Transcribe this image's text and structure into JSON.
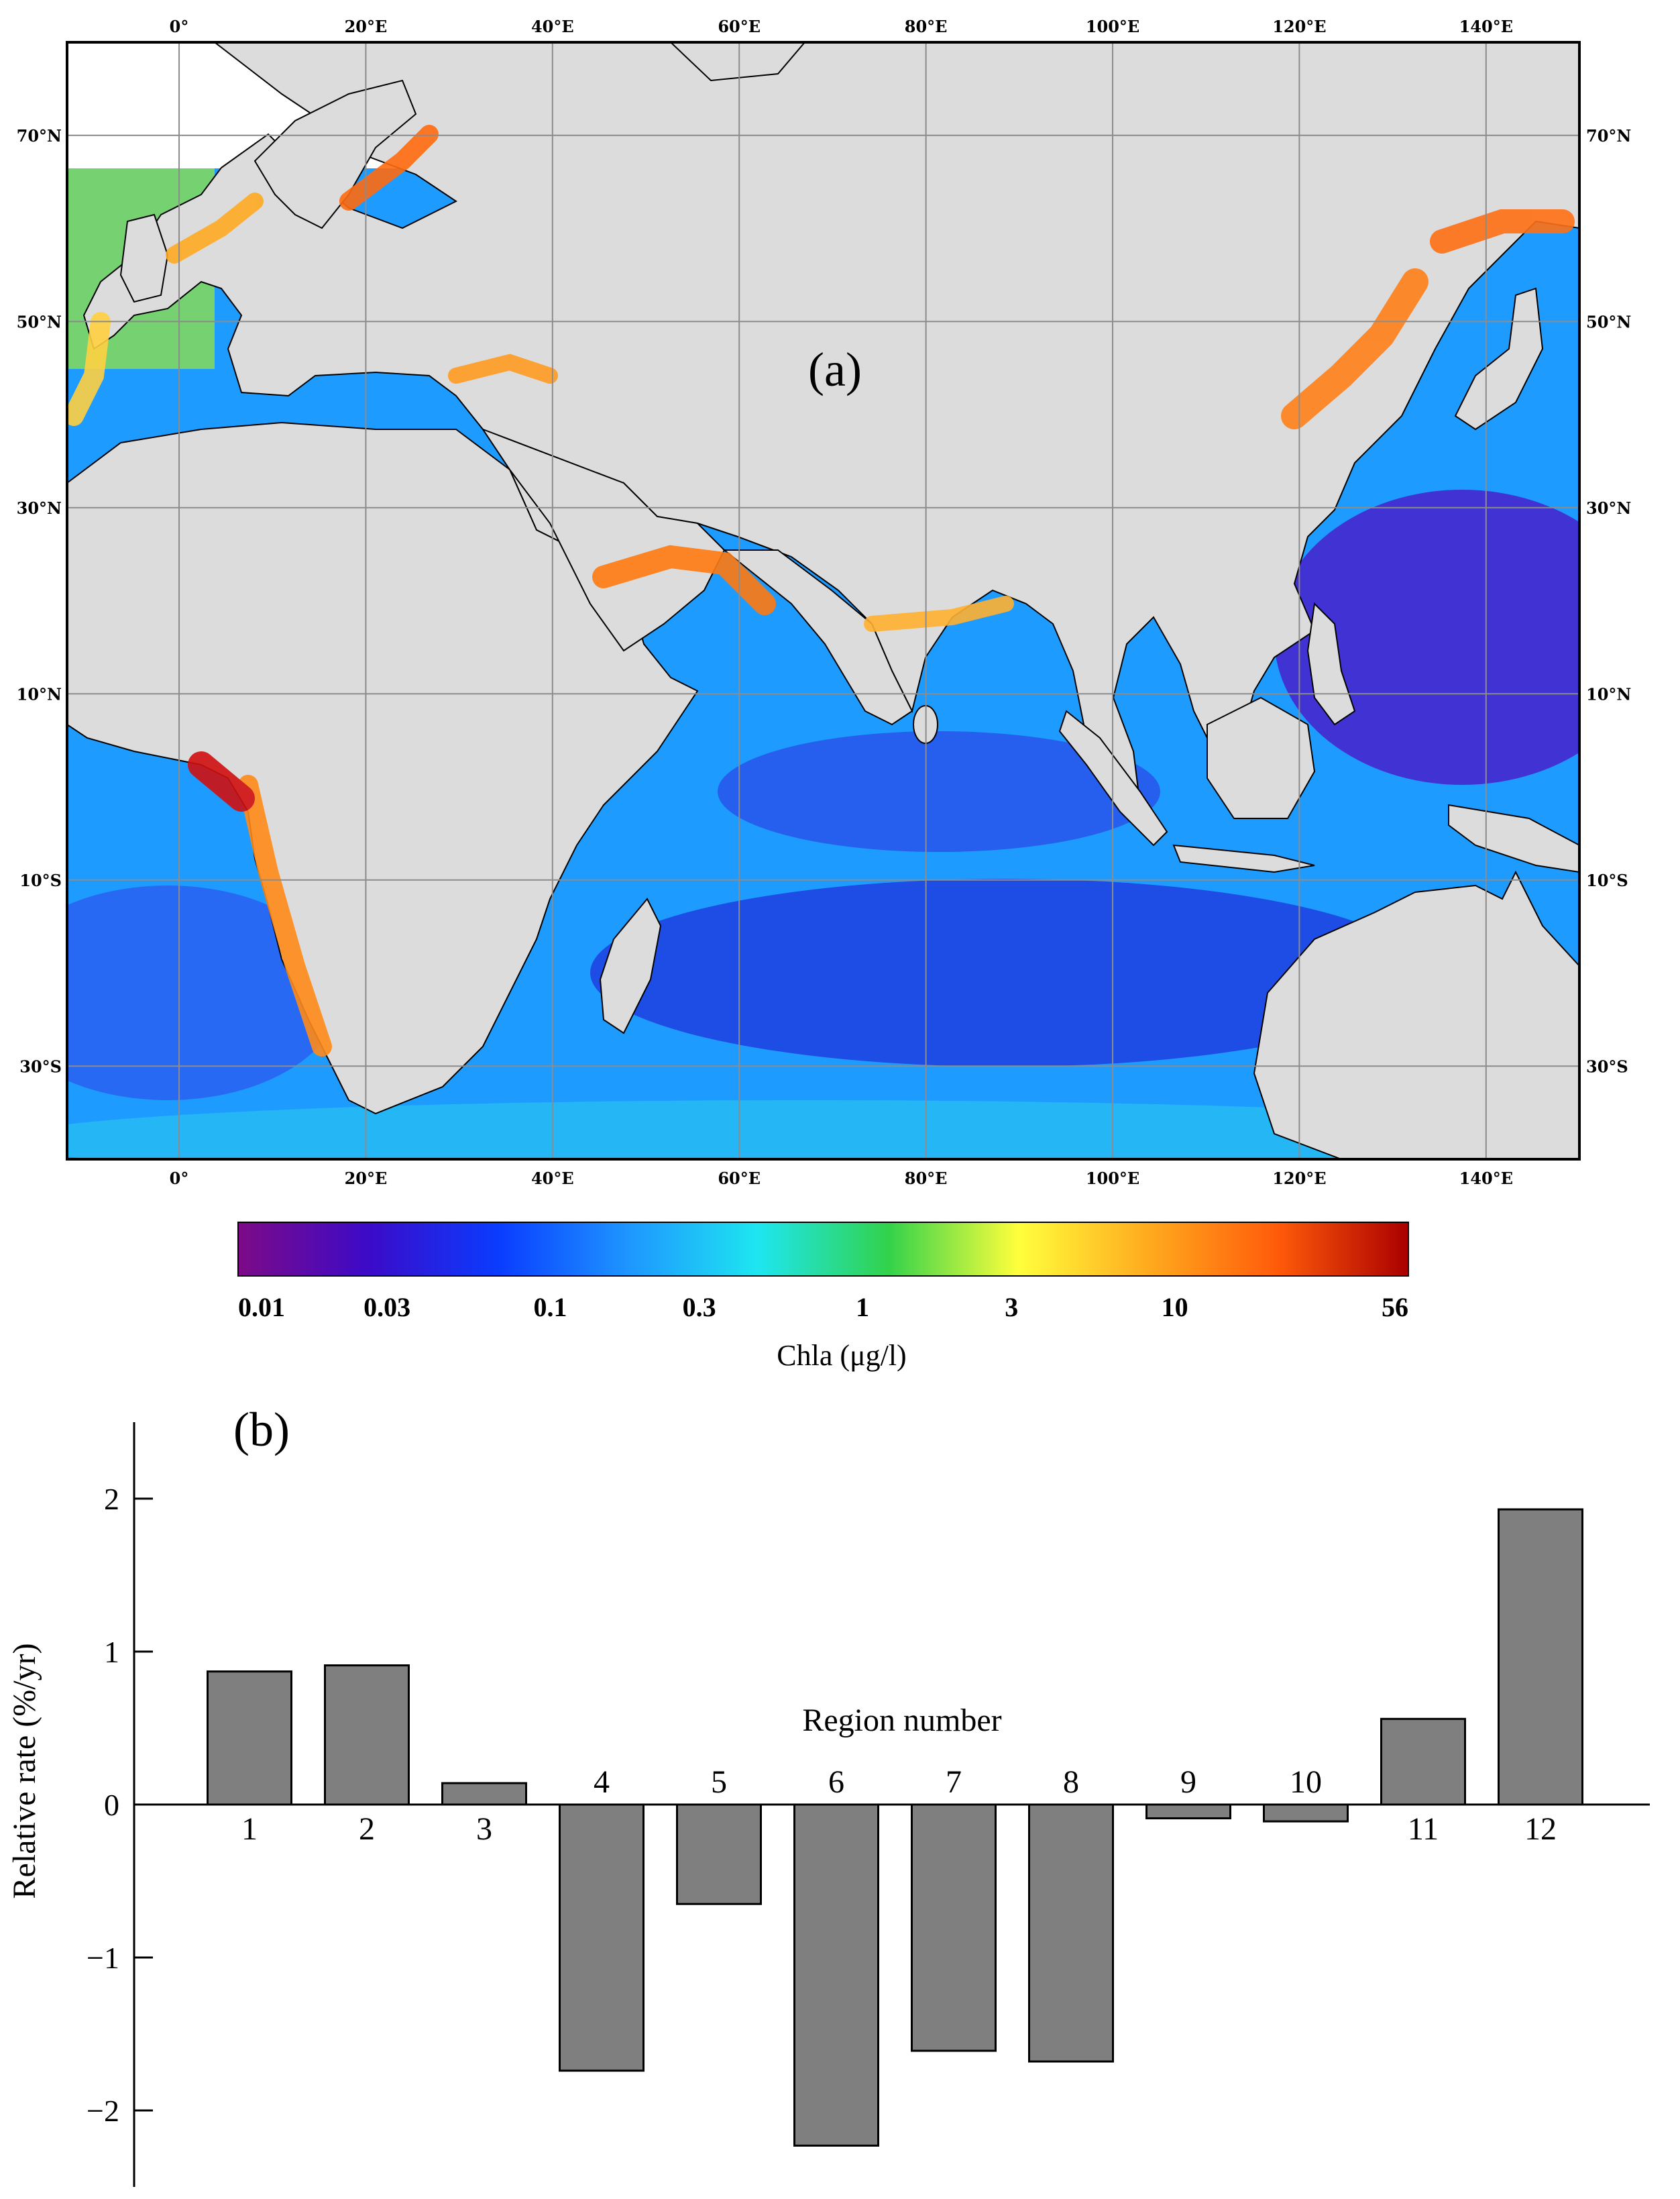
{
  "panel_a": {
    "label": "(a)",
    "map": {
      "lon_range": [
        -12,
        150
      ],
      "lat_range": [
        -40,
        80
      ],
      "lon_ticks": [
        {
          "value": 0,
          "label": "0°"
        },
        {
          "value": 20,
          "label": "20°E"
        },
        {
          "value": 40,
          "label": "40°E"
        },
        {
          "value": 60,
          "label": "60°E"
        },
        {
          "value": 80,
          "label": "80°E"
        },
        {
          "value": 100,
          "label": "100°E"
        },
        {
          "value": 120,
          "label": "120°E"
        },
        {
          "value": 140,
          "label": "140°E"
        }
      ],
      "lat_ticks": [
        {
          "value": 70,
          "label": "70°N"
        },
        {
          "value": 50,
          "label": "50°N"
        },
        {
          "value": 30,
          "label": "30°N"
        },
        {
          "value": 10,
          "label": "10°N"
        },
        {
          "value": -10,
          "label": "10°S"
        },
        {
          "value": -30,
          "label": "30°S"
        }
      ],
      "grid": true,
      "colors": {
        "land": "#dcdcdc",
        "grid": "#8c8c8c",
        "coast": "#000000"
      }
    },
    "colorbar": {
      "title": "Chla (μg/l)",
      "scale": "log",
      "tick_labels": [
        "0.01",
        "0.03",
        "0.1",
        "0.3",
        "1",
        "3",
        "10",
        "56"
      ],
      "tick_values": [
        0.01,
        0.03,
        0.1,
        0.3,
        1,
        3,
        10,
        56
      ],
      "colormap": [
        "#7d0a87",
        "#3c0ac8",
        "#0a3cff",
        "#1e96ff",
        "#1ee6f0",
        "#32d24b",
        "#ffff3c",
        "#ffaa1e",
        "#ff5a0a",
        "#aa0000"
      ]
    }
  },
  "panel_b": {
    "label": "(b)",
    "chart_data": {
      "type": "bar",
      "categories": [
        "1",
        "2",
        "3",
        "4",
        "5",
        "6",
        "7",
        "8",
        "9",
        "10",
        "11",
        "12"
      ],
      "values": [
        0.87,
        0.91,
        0.14,
        -1.74,
        -0.65,
        -2.23,
        -1.61,
        -1.68,
        -0.09,
        -0.11,
        0.56,
        1.93
      ],
      "xlabel": "Region number",
      "ylabel": "Relative rate (%/yr)",
      "ylim": [
        -2.5,
        2.5
      ],
      "yticks": [
        2,
        1,
        0,
        -1,
        -2
      ],
      "ytick_labels": [
        "2",
        "1",
        "0",
        "−1",
        "−2"
      ],
      "bar_color": "#7f7f7f",
      "grid": false
    }
  }
}
